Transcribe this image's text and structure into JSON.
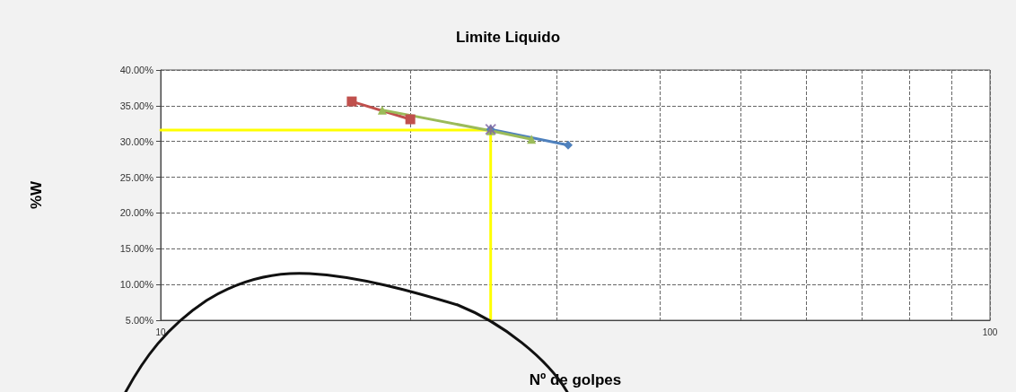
{
  "chart_data": {
    "type": "line",
    "title": "Limite Liquido",
    "xlabel": "Nº de golpes",
    "ylabel": "%W",
    "log": "x",
    "grid": true,
    "line_style": "solid",
    "xlim": [
      10,
      100
    ],
    "xticks": [
      10,
      {
        "value": 20,
        "label": null
      },
      {
        "value": 30,
        "label": null
      },
      {
        "value": 40,
        "label": null
      },
      {
        "value": 50,
        "label": null
      },
      {
        "value": 60,
        "label": null
      },
      {
        "value": 70,
        "label": null
      },
      {
        "value": 80,
        "label": null
      },
      {
        "value": 90,
        "label": null
      },
      100
    ],
    "ylim": [
      5,
      40
    ],
    "yticks": [
      {
        "value": 5,
        "label": "5.00%"
      },
      {
        "value": 10,
        "label": "10.00%"
      },
      {
        "value": 15,
        "label": "15.00%"
      },
      {
        "value": 20,
        "label": "20.00%"
      },
      {
        "value": 25,
        "label": "25.00%"
      },
      {
        "value": 30,
        "label": "30.00%"
      },
      {
        "value": 35,
        "label": "35.00%"
      },
      {
        "value": 40,
        "label": "40.00%"
      }
    ],
    "series": [
      {
        "color": "#ffff00",
        "marker": "none",
        "x": [
          10,
          25,
          25
        ],
        "values": [
          31.6,
          31.6,
          5
        ]
      },
      {
        "color": "#4f81bd",
        "marker": "diamond",
        "x": [
          25,
          31
        ],
        "values": [
          31.7,
          29.5
        ]
      },
      {
        "color": "#c0504d",
        "marker": "square",
        "x": [
          17,
          20
        ],
        "values": [
          35.6,
          33.1
        ]
      },
      {
        "color": "#9bbb59",
        "marker": "triangle",
        "x": [
          18.5,
          25,
          28
        ],
        "values": [
          34.4,
          31.5,
          30.3
        ]
      },
      {
        "type": "scatter",
        "color": "#8064a2",
        "marker": "cross",
        "x": [
          25
        ],
        "values": [
          31.7
        ]
      }
    ]
  }
}
